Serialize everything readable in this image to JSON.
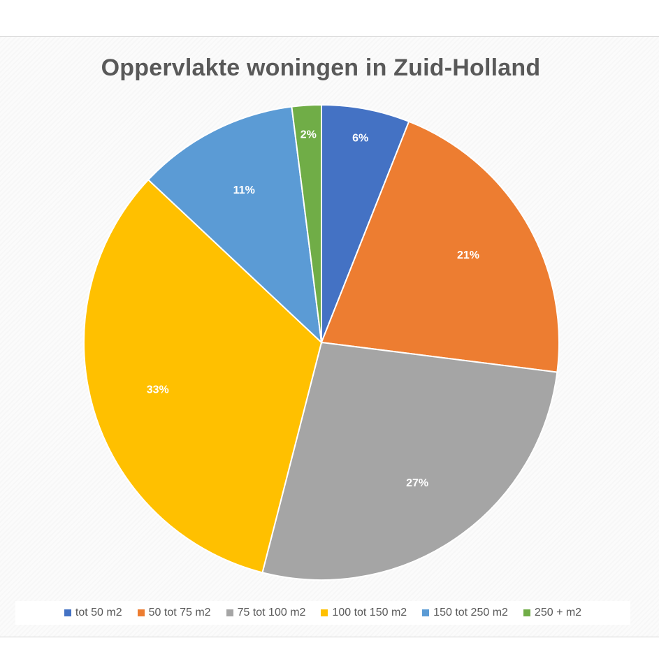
{
  "chart_data": {
    "type": "pie",
    "title": "Oppervlakte woningen in Zuid-Holland",
    "categories": [
      "tot 50 m2",
      "50 tot 75 m2",
      "75 tot 100 m2",
      "100 tot 150 m2",
      "150 tot 250 m2",
      "250 + m2"
    ],
    "values": [
      6,
      21,
      27,
      33,
      11,
      2
    ],
    "data_labels": [
      "6%",
      "21%",
      "27%",
      "33%",
      "11%",
      "2%"
    ],
    "colors": [
      "#4472C4",
      "#ED7D31",
      "#A5A5A5",
      "#FFC000",
      "#5B9BD5",
      "#70AD47"
    ],
    "legend_position": "bottom"
  }
}
